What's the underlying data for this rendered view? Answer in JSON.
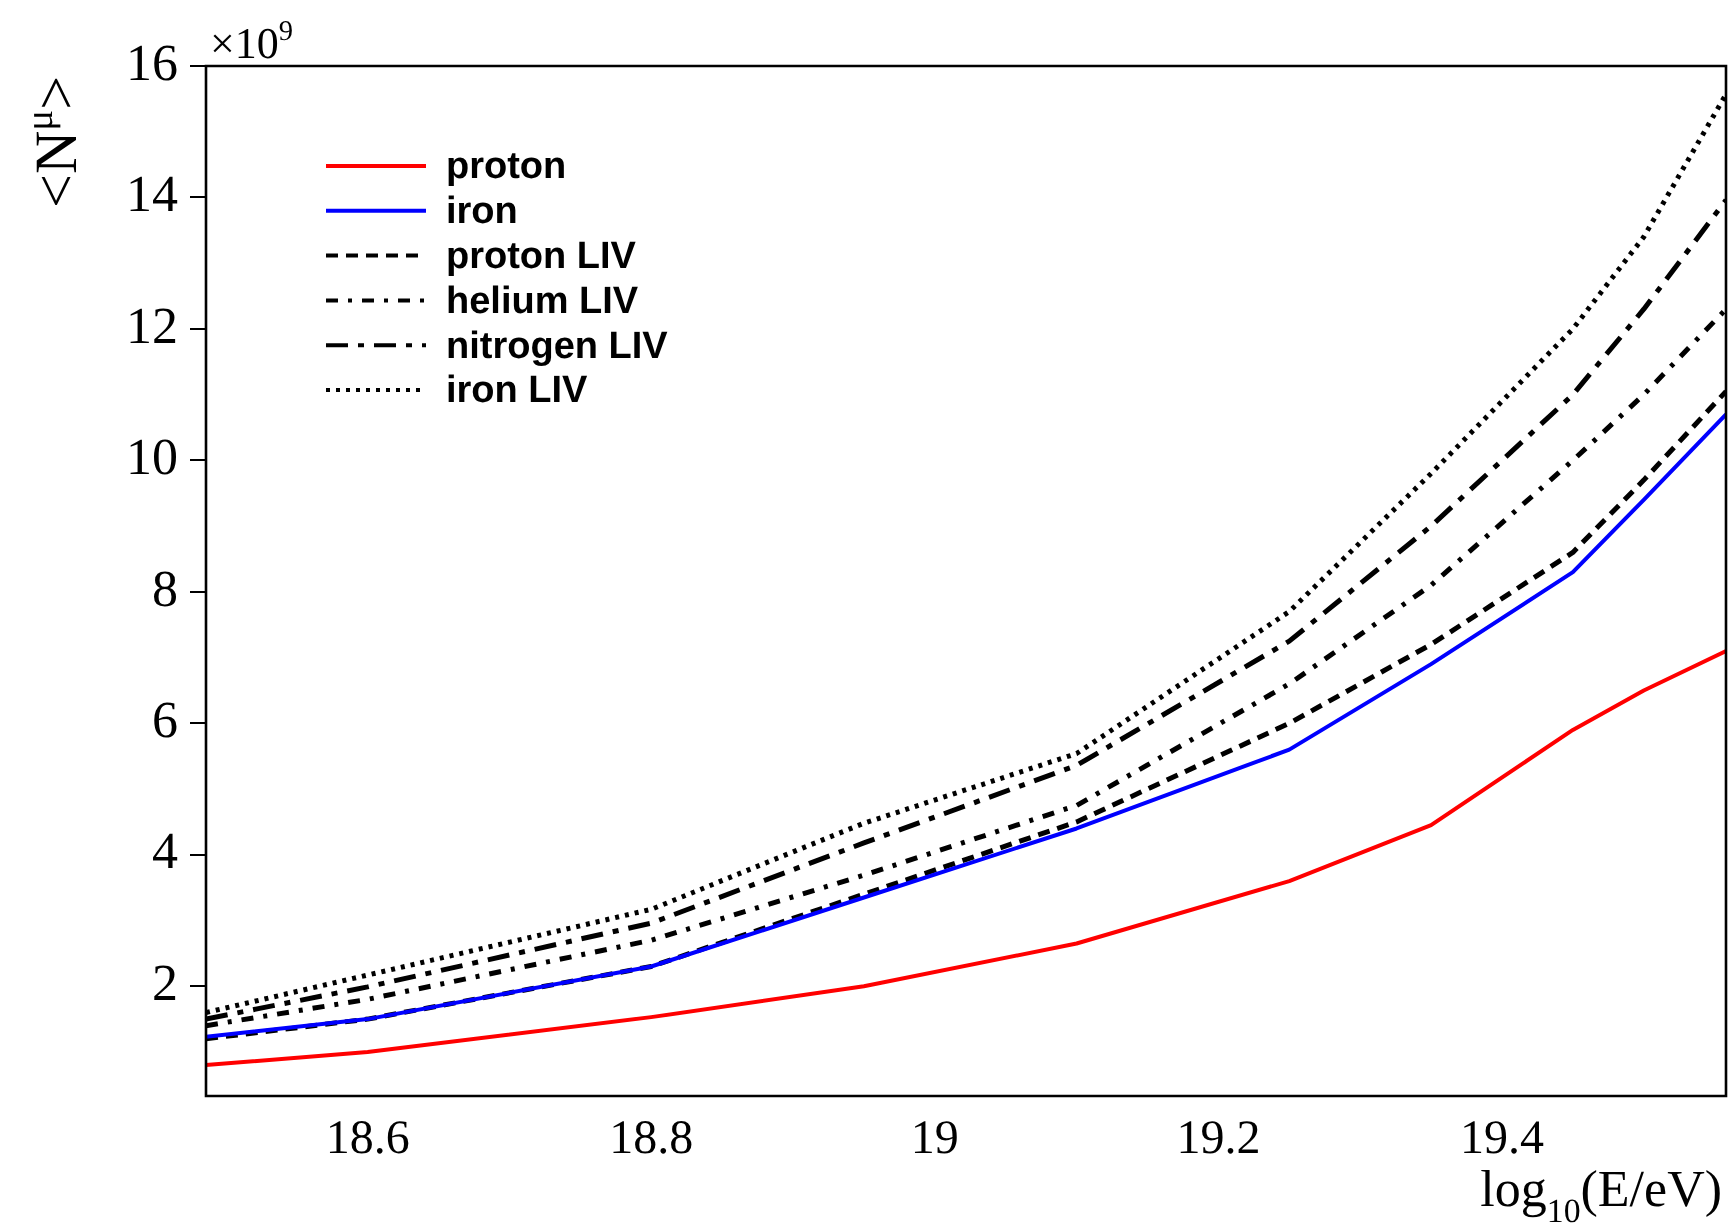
{
  "chart_data": {
    "type": "line",
    "xlabel": "log$_{10}$(E/eV)",
    "ylabel": "<N$^{μ}$>",
    "annotations": [
      "×10$^{9}$"
    ],
    "xlim": [
      18.486,
      19.558
    ],
    "xticks": [
      18.6,
      18.8,
      19,
      19.2,
      19.4
    ],
    "ylim": [
      0.33,
      16
    ],
    "yticks": [
      2,
      4,
      6,
      8,
      10,
      12,
      14,
      16
    ],
    "grid": false,
    "legend": "top left",
    "marker": "none",
    "series": [
      {
        "name": "proton",
        "color": "#ff0000",
        "line_style": "solid",
        "x": [
          18.486,
          18.6,
          18.8,
          18.95,
          19.1,
          19.25,
          19.35,
          19.45,
          19.5,
          19.558
        ],
        "values": [
          0.8,
          1.0,
          1.53,
          2.0,
          2.65,
          3.6,
          4.45,
          5.9,
          6.5,
          7.1
        ]
      },
      {
        "name": "iron",
        "color": "#0000ff",
        "line_style": "solid",
        "x": [
          18.486,
          18.6,
          18.8,
          18.95,
          19.1,
          19.25,
          19.35,
          19.45,
          19.5,
          19.558
        ],
        "values": [
          1.23,
          1.5,
          2.3,
          3.35,
          4.4,
          5.6,
          6.9,
          8.3,
          9.4,
          10.7
        ]
      },
      {
        "name": "proton LIV",
        "color": "#000000",
        "line_style": "dashed",
        "x": [
          18.486,
          18.6,
          18.8,
          18.95,
          19.1,
          19.25,
          19.35,
          19.45,
          19.5,
          19.558
        ],
        "values": [
          1.2,
          1.5,
          2.3,
          3.4,
          4.5,
          6.0,
          7.2,
          8.6,
          9.7,
          11.05
        ]
      },
      {
        "name": "helium LIV",
        "color": "#000000",
        "line_style": "dashdot",
        "x": [
          18.486,
          18.6,
          18.8,
          18.95,
          19.1,
          19.25,
          19.35,
          19.45,
          19.5,
          19.558
        ],
        "values": [
          1.4,
          1.8,
          2.7,
          3.69,
          4.75,
          6.6,
          8.1,
          10.0,
          11.0,
          12.3
        ]
      },
      {
        "name": "nitrogen LIV",
        "color": "#000000",
        "line_style": "longdashdot",
        "x": [
          18.486,
          18.6,
          18.8,
          18.95,
          19.1,
          19.25,
          19.35,
          19.45,
          19.5,
          19.558
        ],
        "values": [
          1.5,
          1.99,
          2.96,
          4.18,
          5.36,
          7.25,
          9.0,
          11.0,
          12.3,
          13.96
        ]
      },
      {
        "name": "iron LIV",
        "color": "#000000",
        "line_style": "dotted",
        "x": [
          18.486,
          18.6,
          18.8,
          18.95,
          19.1,
          19.25,
          19.35,
          19.45,
          19.5,
          19.558
        ],
        "values": [
          1.6,
          2.17,
          3.17,
          4.48,
          5.54,
          7.7,
          9.8,
          12.0,
          13.4,
          15.57
        ]
      }
    ]
  }
}
